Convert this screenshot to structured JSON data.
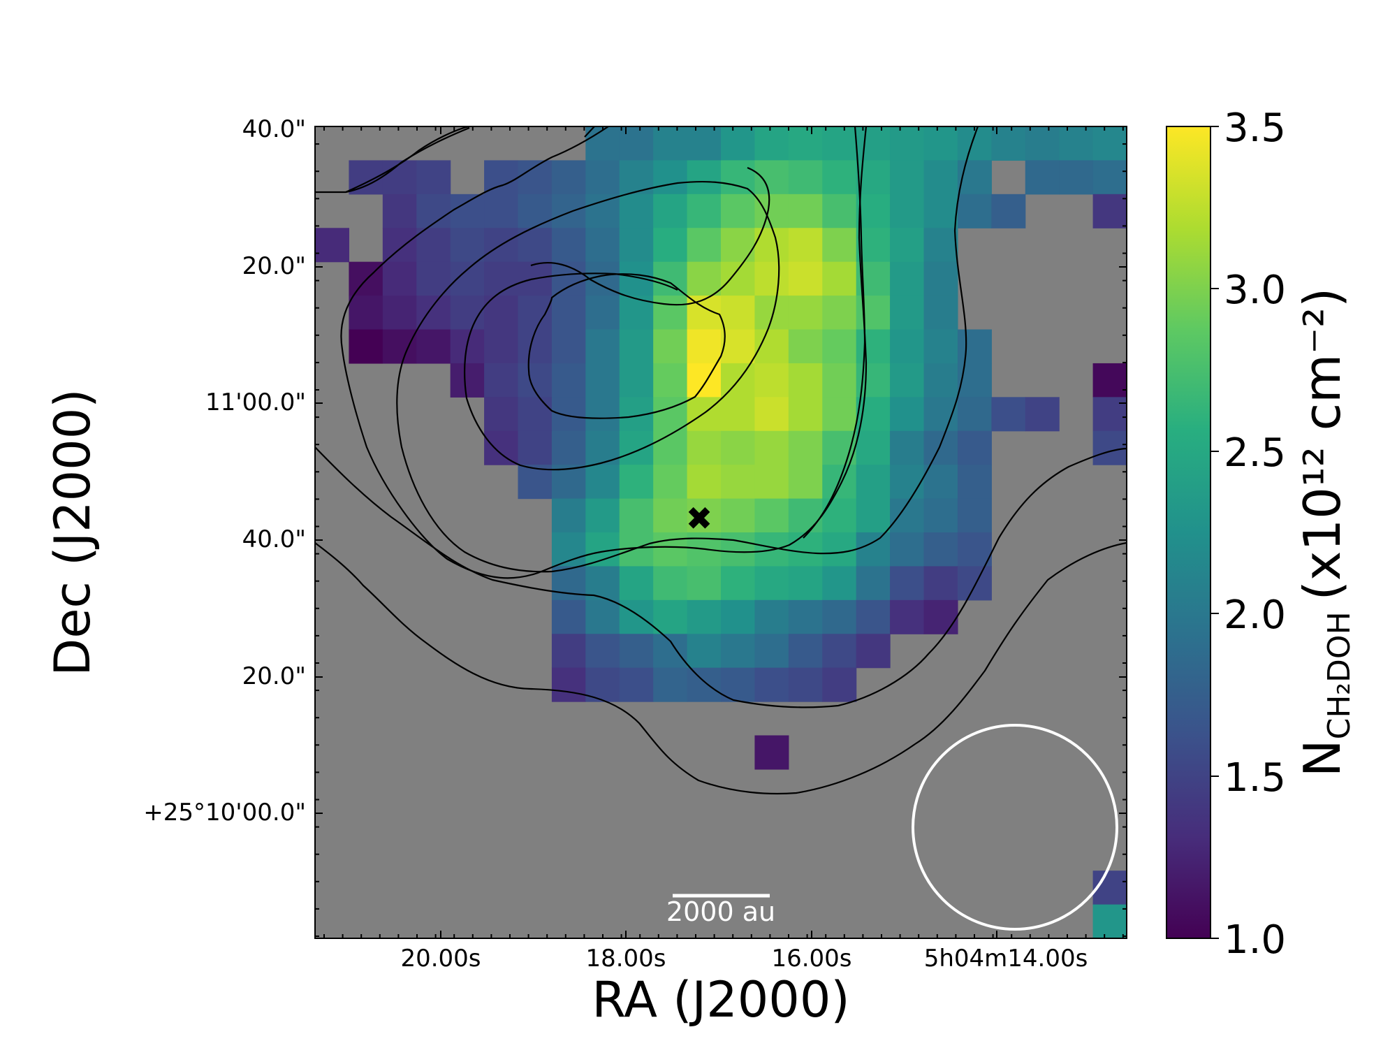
{
  "chart_data": {
    "type": "heatmap",
    "xlabel": "RA (J2000)",
    "ylabel": "Dec (J2000)",
    "x_ticks": [
      "20.00s",
      "18.00s",
      "16.00s",
      "5h04m14.00s"
    ],
    "y_ticks": [
      "+25°10'00.0\"",
      "20.0\"",
      "40.0\"",
      "11'00.0\"",
      "20.0\"",
      "40.0\""
    ],
    "colorbar": {
      "label_main": "N",
      "label_sub": "CH₂DOH",
      "label_units": "(x10¹² cm⁻²)",
      "range": [
        1.0,
        3.5
      ],
      "ticks": [
        "1.0",
        "1.5",
        "2.0",
        "2.5",
        "3.0",
        "3.5"
      ],
      "colormap": "viridis"
    },
    "background_color": "#808080",
    "grid_shape": [
      24,
      24
    ],
    "values": [
      [
        null,
        null,
        null,
        null,
        null,
        null,
        null,
        null,
        1.95,
        1.95,
        2.1,
        2.1,
        2.3,
        2.45,
        2.5,
        2.45,
        2.4,
        2.35,
        2.3,
        2.2,
        2.1,
        2.05,
        2.1,
        2.15
      ],
      [
        null,
        1.45,
        1.45,
        1.5,
        null,
        1.6,
        1.65,
        1.75,
        1.9,
        2.1,
        2.25,
        2.45,
        2.65,
        2.75,
        2.7,
        2.6,
        2.5,
        2.35,
        2.2,
        2.0,
        null,
        1.85,
        1.85,
        1.9
      ],
      [
        null,
        null,
        1.4,
        1.55,
        1.6,
        1.6,
        1.7,
        1.8,
        1.95,
        2.2,
        2.45,
        2.65,
        2.85,
        2.95,
        2.95,
        2.75,
        2.55,
        2.35,
        2.2,
        1.9,
        1.75,
        null,
        null,
        1.4
      ],
      [
        1.3,
        null,
        1.35,
        1.45,
        1.55,
        1.5,
        1.55,
        1.7,
        1.9,
        2.2,
        2.55,
        2.85,
        3.05,
        3.2,
        3.25,
        3.0,
        2.6,
        2.4,
        2.1,
        null,
        null,
        null,
        null,
        null
      ],
      [
        null,
        1.1,
        1.3,
        1.45,
        1.5,
        1.45,
        1.45,
        1.65,
        1.85,
        2.25,
        2.7,
        3.05,
        3.15,
        3.25,
        3.3,
        3.15,
        2.7,
        2.35,
        2.05,
        null,
        null,
        null,
        null,
        null
      ],
      [
        null,
        1.15,
        1.25,
        1.35,
        1.45,
        1.4,
        1.5,
        1.65,
        1.9,
        2.3,
        2.85,
        3.35,
        3.3,
        3.1,
        3.1,
        3.0,
        2.8,
        2.35,
        2.05,
        null,
        null,
        null,
        null,
        null
      ],
      [
        null,
        1.0,
        1.1,
        1.15,
        1.3,
        1.4,
        1.5,
        1.65,
        2.0,
        2.35,
        2.95,
        3.45,
        3.35,
        3.2,
        3.0,
        2.9,
        2.6,
        2.3,
        2.1,
        1.9,
        null,
        null,
        null,
        null
      ],
      [
        null,
        null,
        null,
        null,
        1.2,
        1.45,
        1.55,
        1.7,
        2.0,
        2.35,
        2.9,
        3.5,
        3.2,
        3.25,
        3.15,
        2.95,
        2.65,
        2.35,
        2.05,
        1.9,
        null,
        null,
        null,
        1.05
      ],
      [
        null,
        null,
        null,
        null,
        null,
        1.4,
        1.5,
        1.7,
        2.0,
        2.4,
        2.85,
        3.2,
        3.2,
        3.3,
        3.15,
        2.95,
        2.55,
        2.25,
        2.0,
        1.85,
        1.6,
        1.5,
        null,
        1.45
      ],
      [
        null,
        null,
        null,
        null,
        null,
        1.35,
        1.5,
        1.75,
        2.05,
        2.45,
        2.85,
        3.1,
        3.05,
        3.1,
        3.0,
        2.75,
        2.5,
        2.05,
        1.85,
        1.7,
        null,
        null,
        null,
        1.55
      ],
      [
        null,
        null,
        null,
        null,
        null,
        null,
        1.65,
        1.85,
        2.15,
        2.6,
        2.9,
        3.15,
        3.1,
        3.1,
        3.0,
        2.65,
        2.4,
        2.1,
        1.95,
        1.75,
        null,
        null,
        null,
        null
      ],
      [
        null,
        null,
        null,
        null,
        null,
        null,
        null,
        2.05,
        2.35,
        2.75,
        2.95,
        3.0,
        2.95,
        2.85,
        2.7,
        2.6,
        2.4,
        2.0,
        1.9,
        1.75,
        null,
        null,
        null,
        null
      ],
      [
        null,
        null,
        null,
        null,
        null,
        null,
        null,
        2.15,
        2.45,
        2.75,
        2.85,
        2.8,
        2.75,
        2.65,
        2.6,
        2.5,
        2.1,
        1.9,
        1.75,
        1.65,
        null,
        null,
        null,
        null
      ],
      [
        null,
        null,
        null,
        null,
        null,
        null,
        null,
        1.85,
        2.05,
        2.45,
        2.7,
        2.75,
        2.6,
        2.5,
        2.45,
        2.3,
        1.95,
        1.6,
        1.45,
        1.55,
        null,
        null,
        null,
        null
      ],
      [
        null,
        null,
        null,
        null,
        null,
        null,
        null,
        1.7,
        2.0,
        2.3,
        2.45,
        2.35,
        2.25,
        2.05,
        1.95,
        1.85,
        1.65,
        1.35,
        1.25,
        null,
        null,
        null,
        null,
        null
      ],
      [
        null,
        null,
        null,
        null,
        null,
        null,
        null,
        1.45,
        1.65,
        1.75,
        1.9,
        2.1,
        2.0,
        1.9,
        1.7,
        1.55,
        1.4,
        null,
        null,
        null,
        null,
        null,
        null,
        null
      ],
      [
        null,
        null,
        null,
        null,
        null,
        null,
        null,
        1.35,
        1.55,
        1.6,
        1.8,
        1.75,
        1.7,
        1.6,
        1.55,
        1.45,
        null,
        null,
        null,
        null,
        null,
        null,
        null,
        null
      ],
      [
        null,
        null,
        null,
        null,
        null,
        null,
        null,
        null,
        null,
        null,
        null,
        null,
        null,
        null,
        null,
        null,
        null,
        null,
        null,
        null,
        null,
        null,
        null,
        null
      ],
      [
        null,
        null,
        null,
        null,
        null,
        null,
        null,
        null,
        null,
        null,
        null,
        null,
        null,
        1.15,
        null,
        null,
        null,
        null,
        null,
        null,
        null,
        null,
        null,
        null
      ],
      [
        null,
        null,
        null,
        null,
        null,
        null,
        null,
        null,
        null,
        null,
        null,
        null,
        null,
        null,
        null,
        null,
        null,
        null,
        null,
        null,
        null,
        null,
        null,
        null
      ],
      [
        null,
        null,
        null,
        null,
        null,
        null,
        null,
        null,
        null,
        null,
        null,
        null,
        null,
        null,
        null,
        null,
        null,
        null,
        null,
        null,
        null,
        null,
        null,
        null
      ],
      [
        null,
        null,
        null,
        null,
        null,
        null,
        null,
        null,
        null,
        null,
        null,
        null,
        null,
        null,
        null,
        null,
        null,
        null,
        null,
        null,
        null,
        null,
        null,
        null
      ],
      [
        null,
        null,
        null,
        null,
        null,
        null,
        null,
        null,
        null,
        null,
        null,
        null,
        null,
        null,
        null,
        null,
        null,
        null,
        null,
        null,
        null,
        null,
        null,
        1.5
      ],
      [
        null,
        null,
        null,
        null,
        null,
        null,
        null,
        null,
        null,
        null,
        null,
        null,
        null,
        null,
        null,
        null,
        null,
        null,
        null,
        null,
        null,
        null,
        null,
        2.3
      ]
    ],
    "contours_note": "",
    "scalebar_label": "2000 au",
    "marker": "x"
  }
}
